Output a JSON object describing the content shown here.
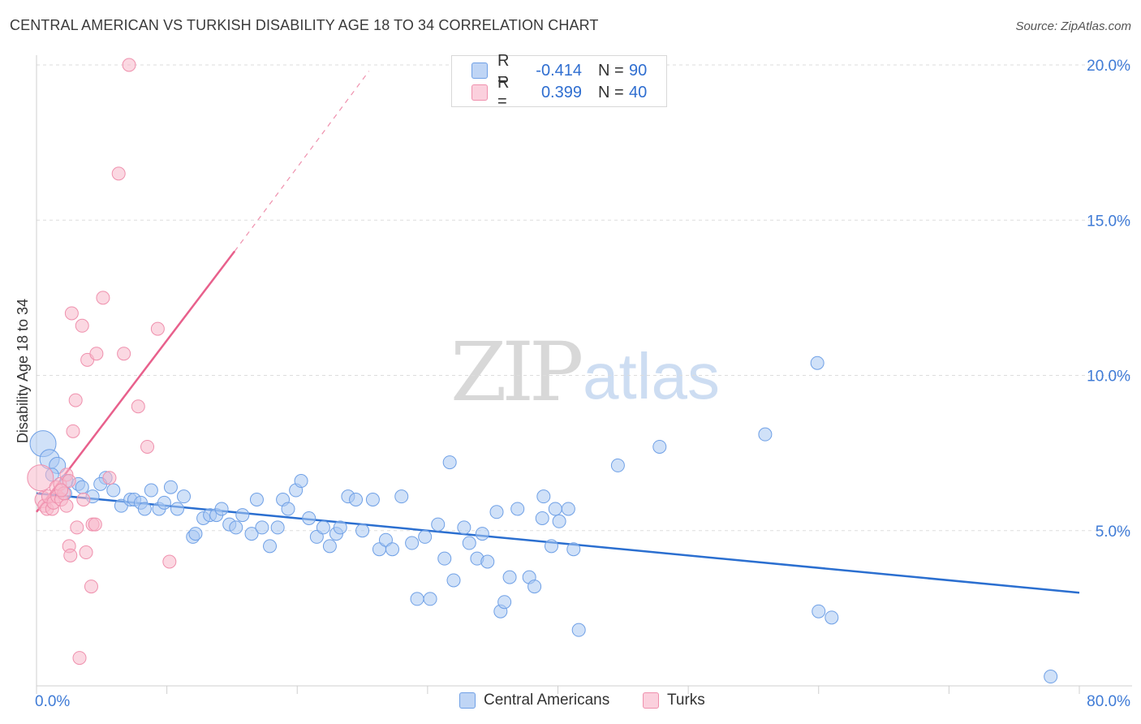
{
  "header": {
    "title": "CENTRAL AMERICAN VS TURKISH DISABILITY AGE 18 TO 34 CORRELATION CHART",
    "source": "Source: ZipAtlas.com"
  },
  "legend": {
    "rows": [
      {
        "r_label": "R =",
        "r_value": "-0.414",
        "n_label": "N =",
        "n_value": "90",
        "color": "#a9c8f3"
      },
      {
        "r_label": "R =",
        "r_value": "0.399",
        "n_label": "N =",
        "n_value": "40",
        "color": "#f7b8cb"
      }
    ],
    "bottom": [
      "Central Americans",
      "Turks"
    ]
  },
  "watermark": {
    "zip": "ZIP",
    "atlas": "atlas"
  },
  "colors": {
    "blue_fill": "#a9c8f3",
    "blue_stroke": "#6fa0e6",
    "blue_line": "#2b6fd0",
    "pink_fill": "#f7b8cb",
    "pink_stroke": "#ef90ad",
    "pink_line": "#e8608c",
    "axis_text": "#3f7bd6",
    "grid": "#dddddd"
  },
  "chart_data": {
    "type": "scatter",
    "title": "CENTRAL AMERICAN VS TURKISH DISABILITY AGE 18 TO 34 CORRELATION CHART",
    "xlabel": "",
    "ylabel": "Disability Age 18 to 34",
    "xlim": [
      0,
      80
    ],
    "ylim": [
      0,
      20.5
    ],
    "x_tick_labels": [
      "0.0%",
      "80.0%"
    ],
    "y_ticks": [
      5,
      10,
      15,
      20
    ],
    "y_tick_labels": [
      "5.0%",
      "10.0%",
      "15.0%",
      "20.0%"
    ],
    "grid": "horizontal dashed",
    "legend_position": "top-center",
    "series": [
      {
        "name": "Central Americans",
        "r": -0.414,
        "n": 90,
        "trend": {
          "x0": 0,
          "y0": 6.2,
          "x1": 80,
          "y1": 3.0
        },
        "points": [
          [
            0.5,
            7.8,
            16
          ],
          [
            1.0,
            7.3,
            12
          ],
          [
            1.6,
            7.1,
            10
          ],
          [
            1.2,
            6.8,
            8
          ],
          [
            2.3,
            6.6,
            8
          ],
          [
            2.2,
            6.2,
            8
          ],
          [
            3.2,
            6.5,
            8
          ],
          [
            3.5,
            6.4,
            8
          ],
          [
            4.3,
            6.1,
            8
          ],
          [
            5.3,
            6.7,
            8
          ],
          [
            4.9,
            6.5,
            8
          ],
          [
            5.9,
            6.3,
            8
          ],
          [
            6.5,
            5.8,
            8
          ],
          [
            7.2,
            6.0,
            8
          ],
          [
            7.5,
            6.0,
            8
          ],
          [
            8.0,
            5.9,
            8
          ],
          [
            8.3,
            5.7,
            8
          ],
          [
            8.8,
            6.3,
            8
          ],
          [
            9.4,
            5.7,
            8
          ],
          [
            9.8,
            5.9,
            8
          ],
          [
            10.3,
            6.4,
            8
          ],
          [
            10.8,
            5.7,
            8
          ],
          [
            11.3,
            6.1,
            8
          ],
          [
            12.0,
            4.8,
            8
          ],
          [
            12.2,
            4.9,
            8
          ],
          [
            12.8,
            5.4,
            8
          ],
          [
            13.3,
            5.5,
            8
          ],
          [
            13.8,
            5.5,
            8
          ],
          [
            14.2,
            5.7,
            8
          ],
          [
            14.8,
            5.2,
            8
          ],
          [
            15.3,
            5.1,
            8
          ],
          [
            15.8,
            5.5,
            8
          ],
          [
            16.5,
            4.9,
            8
          ],
          [
            16.9,
            6.0,
            8
          ],
          [
            17.3,
            5.1,
            8
          ],
          [
            17.9,
            4.5,
            8
          ],
          [
            18.5,
            5.1,
            8
          ],
          [
            18.9,
            6.0,
            8
          ],
          [
            19.3,
            5.7,
            8
          ],
          [
            19.9,
            6.3,
            8
          ],
          [
            20.3,
            6.6,
            8
          ],
          [
            20.9,
            5.4,
            8
          ],
          [
            21.5,
            4.8,
            8
          ],
          [
            22.0,
            5.1,
            8
          ],
          [
            22.5,
            4.5,
            8
          ],
          [
            23.0,
            4.9,
            8
          ],
          [
            23.3,
            5.1,
            8
          ],
          [
            23.9,
            6.1,
            8
          ],
          [
            24.5,
            6.0,
            8
          ],
          [
            25.0,
            5.0,
            8
          ],
          [
            25.8,
            6.0,
            8
          ],
          [
            26.3,
            4.4,
            8
          ],
          [
            26.8,
            4.7,
            8
          ],
          [
            27.3,
            4.4,
            8
          ],
          [
            28.0,
            6.1,
            8
          ],
          [
            28.8,
            4.6,
            8
          ],
          [
            29.2,
            2.8,
            8
          ],
          [
            29.8,
            4.8,
            8
          ],
          [
            30.2,
            2.8,
            8
          ],
          [
            30.8,
            5.2,
            8
          ],
          [
            31.3,
            4.1,
            8
          ],
          [
            31.7,
            7.2,
            8
          ],
          [
            32.0,
            3.4,
            8
          ],
          [
            32.8,
            5.1,
            8
          ],
          [
            33.2,
            4.6,
            8
          ],
          [
            33.8,
            4.1,
            8
          ],
          [
            34.2,
            4.9,
            8
          ],
          [
            34.6,
            4.0,
            8
          ],
          [
            35.3,
            5.6,
            8
          ],
          [
            35.6,
            2.4,
            8
          ],
          [
            35.9,
            2.7,
            8
          ],
          [
            36.3,
            3.5,
            8
          ],
          [
            36.9,
            5.7,
            8
          ],
          [
            37.8,
            3.5,
            8
          ],
          [
            38.2,
            3.2,
            8
          ],
          [
            38.8,
            5.4,
            8
          ],
          [
            38.9,
            6.1,
            8
          ],
          [
            39.5,
            4.5,
            8
          ],
          [
            39.8,
            5.7,
            8
          ],
          [
            40.1,
            5.3,
            8
          ],
          [
            40.8,
            5.7,
            8
          ],
          [
            41.2,
            4.4,
            8
          ],
          [
            41.6,
            1.8,
            8
          ],
          [
            44.6,
            7.1,
            8
          ],
          [
            47.8,
            7.7,
            8
          ],
          [
            55.9,
            8.1,
            8
          ],
          [
            59.9,
            10.4,
            8
          ],
          [
            60.0,
            2.4,
            8
          ],
          [
            61.0,
            2.2,
            8
          ],
          [
            77.8,
            0.3,
            8
          ]
        ]
      },
      {
        "name": "Turks",
        "r": 0.399,
        "n": 40,
        "trend": {
          "x0": 0,
          "y0": 5.6,
          "x1": 15.2,
          "y1": 14.0,
          "dash_x1": 25.5,
          "dash_y1": 19.8
        },
        "points": [
          [
            0.3,
            6.7,
            16
          ],
          [
            0.5,
            6.0,
            10
          ],
          [
            0.6,
            5.8,
            8
          ],
          [
            0.8,
            5.7,
            8
          ],
          [
            0.9,
            6.1,
            8
          ],
          [
            1.2,
            5.7,
            8
          ],
          [
            1.3,
            5.9,
            8
          ],
          [
            1.5,
            6.4,
            8
          ],
          [
            1.6,
            6.1,
            8
          ],
          [
            1.8,
            6.5,
            8
          ],
          [
            1.9,
            6.0,
            8
          ],
          [
            2.1,
            6.2,
            8
          ],
          [
            2.3,
            5.8,
            8
          ],
          [
            2.3,
            6.8,
            8
          ],
          [
            2.5,
            6.6,
            8
          ],
          [
            2.5,
            4.5,
            8
          ],
          [
            2.6,
            4.2,
            8
          ],
          [
            2.7,
            12.0,
            8
          ],
          [
            2.8,
            8.2,
            8
          ],
          [
            3.0,
            9.2,
            8
          ],
          [
            3.1,
            5.1,
            8
          ],
          [
            3.3,
            0.9,
            8
          ],
          [
            3.5,
            11.6,
            8
          ],
          [
            3.6,
            6.0,
            8
          ],
          [
            3.8,
            4.3,
            8
          ],
          [
            3.9,
            10.5,
            8
          ],
          [
            4.2,
            3.2,
            8
          ],
          [
            4.3,
            5.2,
            8
          ],
          [
            4.5,
            5.2,
            8
          ],
          [
            4.6,
            10.7,
            8
          ],
          [
            5.1,
            12.5,
            8
          ],
          [
            5.6,
            6.7,
            8
          ],
          [
            6.3,
            16.5,
            8
          ],
          [
            6.7,
            10.7,
            8
          ],
          [
            7.1,
            20.0,
            8
          ],
          [
            7.8,
            9.0,
            8
          ],
          [
            8.5,
            7.7,
            8
          ],
          [
            9.3,
            11.5,
            8
          ],
          [
            10.2,
            4.0,
            8
          ],
          [
            1.9,
            6.3,
            8
          ]
        ]
      }
    ]
  }
}
